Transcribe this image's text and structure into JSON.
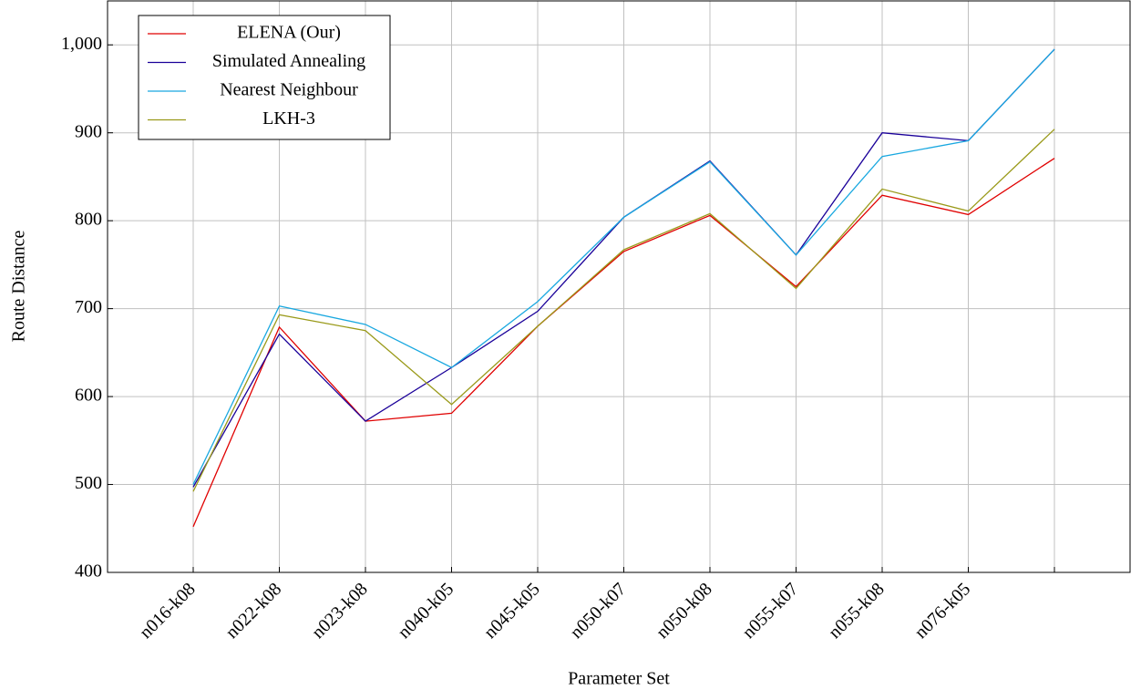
{
  "chart_data": {
    "type": "line",
    "x_label": "Parameter Set",
    "y_label": "Route Distance",
    "categories": [
      "n016-k08",
      "n022-k08",
      "n023-k08",
      "n040-k05",
      "n045-k05",
      "n050-k07",
      "n050-k08",
      "n055-k07",
      "n055-k08",
      "n076-k05",
      null
    ],
    "series": [
      {
        "name": "ELENA (Our)",
        "color": "#e00000",
        "values": [
          452,
          679,
          572,
          581,
          680,
          765,
          806,
          725,
          829,
          807,
          871
        ]
      },
      {
        "name": "Simulated Annealing",
        "color": "#1a0099",
        "values": [
          497,
          671,
          572,
          633,
          697,
          804,
          868,
          761,
          900,
          891,
          995
        ]
      },
      {
        "name": "Nearest Neighbour",
        "color": "#19a8e0",
        "values": [
          500,
          703,
          682,
          633,
          708,
          804,
          867,
          761,
          873,
          891,
          995
        ]
      },
      {
        "name": "LKH-3",
        "color": "#9a9a1a",
        "values": [
          492,
          693,
          675,
          591,
          680,
          767,
          808,
          723,
          836,
          811,
          904
        ]
      }
    ],
    "ylim": [
      400,
      1050
    ],
    "yticks": [
      400,
      500,
      600,
      700,
      800,
      900,
      {
        "value": 1000,
        "label": "1,000"
      }
    ],
    "grid": true,
    "legend": "top-left"
  }
}
